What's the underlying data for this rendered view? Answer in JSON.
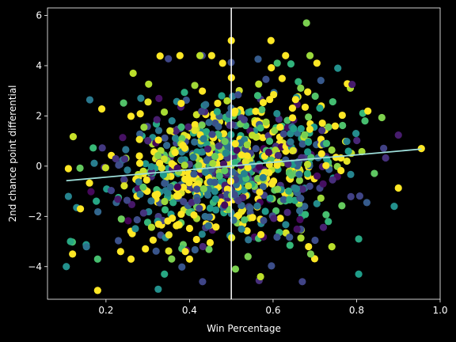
{
  "chart_data": {
    "type": "scatter",
    "title": "",
    "xlabel": "Win Percentage",
    "ylabel": "2nd chance point differential",
    "xlim": [
      0.06,
      1.0
    ],
    "ylim": [
      -5.3,
      6.3
    ],
    "x_ticks": [
      0.2,
      0.4,
      0.6,
      0.8,
      1.0
    ],
    "x_tick_labels": [
      "0.2",
      "0.4",
      "0.6",
      "0.8",
      "1.0"
    ],
    "y_ticks": [
      -4,
      -2,
      0,
      2,
      4,
      6
    ],
    "y_tick_labels": [
      "−4",
      "−2",
      "0",
      "2",
      "4",
      "6"
    ],
    "grid": false,
    "background": "#000000",
    "colormap": "viridis",
    "point_count": 900,
    "point_spread": {
      "x_center": 0.5,
      "x_sd": 0.14,
      "y_slope": 1.4,
      "y_sd": 1.6
    },
    "highlighted_points": [
      {
        "x": 0.11,
        "y": -0.1,
        "c": 1.0
      },
      {
        "x": 0.12,
        "y": -3.5,
        "c": 1.0
      },
      {
        "x": 0.105,
        "y": -4.0,
        "c": 0.5
      },
      {
        "x": 0.115,
        "y": -3.0,
        "c": 0.6
      },
      {
        "x": 0.18,
        "y": -4.95,
        "c": 1.0
      },
      {
        "x": 0.18,
        "y": -3.7,
        "c": 0.7
      },
      {
        "x": 0.235,
        "y": -3.4,
        "c": 1.0
      },
      {
        "x": 0.26,
        "y": -3.7,
        "c": 1.0
      },
      {
        "x": 0.265,
        "y": 3.7,
        "c": 0.9
      },
      {
        "x": 0.325,
        "y": -4.9,
        "c": 0.5
      },
      {
        "x": 0.34,
        "y": -4.3,
        "c": 0.6
      },
      {
        "x": 0.38,
        "y": 2.5,
        "c": 1.0
      },
      {
        "x": 0.39,
        "y": -3.4,
        "c": 1.0
      },
      {
        "x": 0.4,
        "y": -3.7,
        "c": 1.0
      },
      {
        "x": 0.425,
        "y": 4.4,
        "c": 0.9
      },
      {
        "x": 0.49,
        "y": 2.6,
        "c": 0.9
      },
      {
        "x": 0.5,
        "y": 5.0,
        "c": 1.0
      },
      {
        "x": 0.51,
        "y": -4.1,
        "c": 0.8
      },
      {
        "x": 0.54,
        "y": -3.6,
        "c": 0.8
      },
      {
        "x": 0.57,
        "y": -4.4,
        "c": 0.9
      },
      {
        "x": 0.595,
        "y": 5.0,
        "c": 1.0
      },
      {
        "x": 0.61,
        "y": 4.1,
        "c": 0.7
      },
      {
        "x": 0.63,
        "y": 4.4,
        "c": 1.0
      },
      {
        "x": 0.68,
        "y": 5.7,
        "c": 0.8
      },
      {
        "x": 0.705,
        "y": 4.1,
        "c": 1.0
      },
      {
        "x": 0.67,
        "y": -4.6,
        "c": 0.2
      },
      {
        "x": 0.69,
        "y": -3.5,
        "c": 0.8
      },
      {
        "x": 0.755,
        "y": 3.9,
        "c": 0.5
      },
      {
        "x": 0.805,
        "y": -4.3,
        "c": 0.55
      },
      {
        "x": 0.805,
        "y": -2.9,
        "c": 0.6
      },
      {
        "x": 0.89,
        "y": -1.6,
        "c": 0.5
      },
      {
        "x": 0.955,
        "y": 0.7,
        "c": 1.0
      },
      {
        "x": 0.82,
        "y": 1.8,
        "c": 0.7
      }
    ],
    "reference_lines": [
      {
        "orientation": "vertical",
        "x": 0.5,
        "color": "#ffffff"
      }
    ],
    "trend_line": {
      "x": [
        0.105,
        0.955
      ],
      "y": [
        -0.58,
        0.68
      ],
      "color": "#9edfda"
    }
  }
}
